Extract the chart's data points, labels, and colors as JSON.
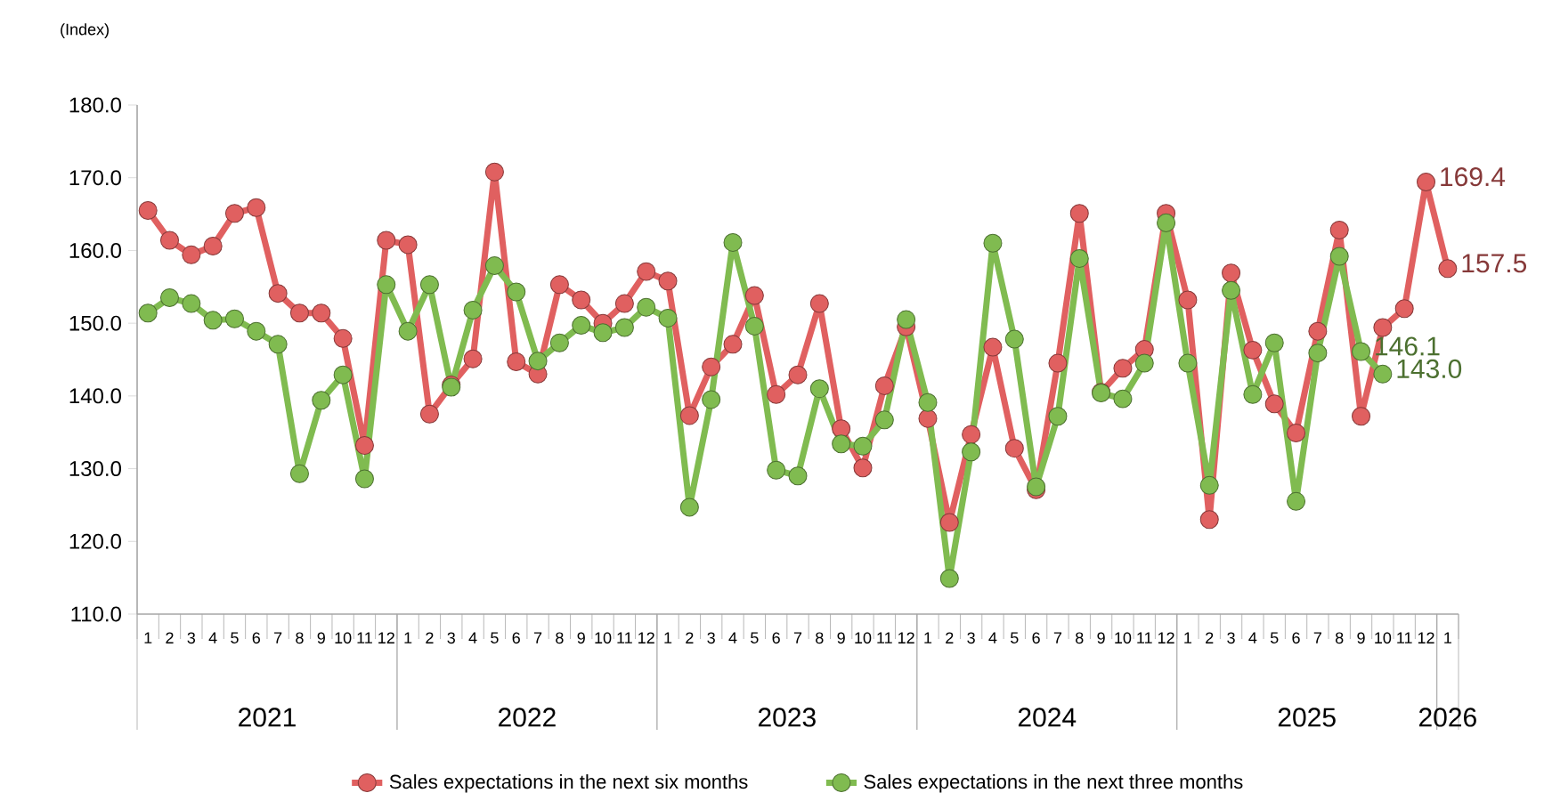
{
  "chart_data": {
    "type": "line",
    "ylabel": "(Index)",
    "categories": [
      "1",
      "2",
      "3",
      "4",
      "5",
      "6",
      "7",
      "8",
      "9",
      "10",
      "11",
      "12",
      "1",
      "2",
      "3",
      "4",
      "5",
      "6",
      "7",
      "8",
      "9",
      "10",
      "11",
      "12",
      "1",
      "2",
      "3",
      "4",
      "5",
      "6",
      "7",
      "8",
      "9",
      "10",
      "11",
      "12",
      "1",
      "2",
      "3",
      "4",
      "5",
      "6",
      "7",
      "8",
      "9",
      "10",
      "11",
      "12",
      "1",
      "2",
      "3",
      "4",
      "5",
      "6",
      "7",
      "8",
      "9",
      "10",
      "11",
      "12",
      "1"
    ],
    "annotations": [
      "2021",
      "2022",
      "2023",
      "2024",
      "2025",
      "2026"
    ],
    "ylim": [
      110,
      180
    ],
    "yticks": [
      {
        "value": 110,
        "label": "110.0"
      },
      {
        "value": 120,
        "label": "120.0"
      },
      {
        "value": 130,
        "label": "130.0"
      },
      {
        "value": 140,
        "label": "140.0"
      },
      {
        "value": 150,
        "label": "150.0"
      },
      {
        "value": 160,
        "label": "160.0"
      },
      {
        "value": 170,
        "label": "170.0"
      },
      {
        "value": 180,
        "label": "180.0"
      }
    ],
    "marker": "circle",
    "line_style": "solid",
    "legend": "bottom",
    "series": [
      {
        "name": "Sales expectations in the next six months",
        "color": "#e06060",
        "values": [
          165.5,
          161.4,
          159.4,
          160.6,
          165.1,
          165.9,
          154.1,
          151.4,
          151.4,
          147.9,
          133.2,
          161.4,
          160.8,
          137.5,
          141.5,
          145.1,
          170.8,
          144.7,
          143.0,
          155.3,
          153.2,
          150.0,
          152.7,
          157.1,
          155.8,
          137.3,
          144.0,
          147.1,
          153.8,
          140.2,
          142.9,
          152.7,
          135.5,
          130.1,
          141.4,
          149.5,
          136.9,
          122.6,
          134.7,
          146.7,
          132.8,
          127.1,
          144.5,
          165.1,
          140.5,
          143.8,
          146.4,
          165.1,
          153.2,
          123.0,
          156.9,
          146.3,
          138.9,
          134.9,
          148.9,
          162.8,
          137.2,
          149.4,
          152.0,
          169.4,
          157.5
        ],
        "value_labels": [
          null,
          null,
          null,
          null,
          null,
          null,
          null,
          null,
          null,
          null,
          null,
          null,
          null,
          null,
          null,
          null,
          null,
          null,
          null,
          null,
          null,
          null,
          null,
          null,
          null,
          null,
          null,
          null,
          null,
          null,
          null,
          null,
          null,
          null,
          null,
          null,
          null,
          null,
          null,
          null,
          null,
          null,
          null,
          null,
          null,
          null,
          null,
          null,
          null,
          null,
          null,
          null,
          null,
          null,
          null,
          null,
          null,
          null,
          null,
          "169.4",
          "157.5"
        ]
      },
      {
        "name": "Sales expectations in the next three months",
        "color": "#80bb50",
        "values": [
          151.4,
          153.5,
          152.7,
          150.4,
          150.6,
          148.9,
          147.1,
          129.3,
          139.4,
          142.9,
          128.6,
          155.3,
          148.9,
          155.3,
          141.2,
          151.8,
          157.9,
          154.3,
          144.8,
          147.3,
          149.7,
          148.7,
          149.4,
          152.2,
          150.7,
          124.7,
          139.5,
          161.1,
          149.6,
          129.8,
          129.0,
          141.0,
          133.4,
          133.1,
          136.7,
          150.5,
          139.1,
          114.9,
          132.3,
          161.0,
          147.8,
          127.5,
          137.2,
          158.9,
          140.4,
          139.6,
          144.5,
          163.8,
          144.5,
          127.7,
          154.5,
          140.2,
          147.3,
          125.5,
          145.9,
          159.2,
          146.1,
          143.0,
          null,
          null,
          null
        ],
        "value_labels": [
          null,
          null,
          null,
          null,
          null,
          null,
          null,
          null,
          null,
          null,
          null,
          null,
          null,
          null,
          null,
          null,
          null,
          null,
          null,
          null,
          null,
          null,
          null,
          null,
          null,
          null,
          null,
          null,
          null,
          null,
          null,
          null,
          null,
          null,
          null,
          null,
          null,
          null,
          null,
          null,
          null,
          null,
          null,
          null,
          null,
          null,
          null,
          null,
          null,
          null,
          null,
          null,
          null,
          null,
          null,
          null,
          "146.1",
          "143.0",
          null,
          null,
          null
        ]
      }
    ]
  }
}
